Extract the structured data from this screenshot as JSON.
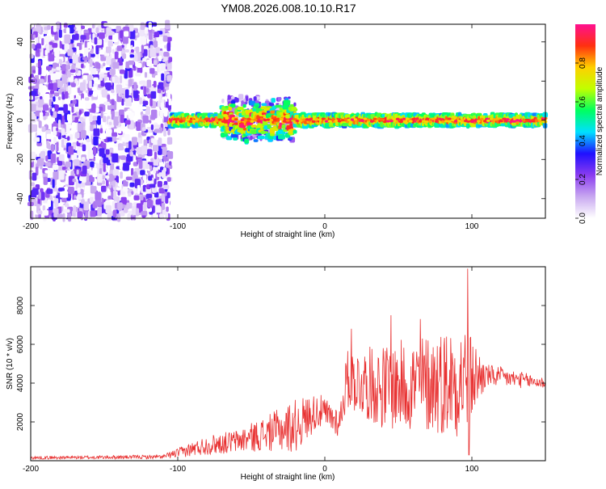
{
  "figure": {
    "title": "YM08.2026.008.10.10.R17"
  },
  "chart_data": [
    {
      "type": "heatmap",
      "title": "YM08.2026.008.10.10.R17",
      "xlabel": "Height of straight line (km)",
      "ylabel": "Frequency (Hz)",
      "xlim": [
        -200,
        150
      ],
      "ylim": [
        -50,
        49
      ],
      "x_ticks": [
        -200,
        -100,
        0,
        100
      ],
      "y_ticks": [
        -40,
        -20,
        0,
        20,
        40
      ],
      "grid": false,
      "colorbar": {
        "label": "Normalized spectral amplitude",
        "range": [
          0,
          1
        ],
        "ticks": [
          0.0,
          0.2,
          0.4,
          0.6,
          0.8
        ],
        "colors": [
          "#ffffff",
          "#c8a8f0",
          "#8a3cf0",
          "#2010ff",
          "#00e0ff",
          "#00ff60",
          "#c0ff00",
          "#ffd000",
          "#ff3010",
          "#ff1090"
        ]
      },
      "regions": [
        {
          "name": "broadband noise",
          "x_range": [
            -200,
            -105
          ],
          "freq_range": [
            -50,
            49
          ],
          "amplitude": [
            0.05,
            0.3
          ]
        },
        {
          "name": "signal band",
          "x_range": [
            -105,
            150
          ],
          "center_freq": 0,
          "half_width_hz": 3,
          "amplitude": [
            0.3,
            1.0
          ]
        },
        {
          "name": "spread",
          "x_range": [
            -70,
            -20
          ],
          "freq_range": [
            -10,
            12
          ]
        }
      ]
    },
    {
      "type": "line",
      "xlabel": "Height of straight line (km)",
      "ylabel": "SNR (10 * v/v)",
      "xlim": [
        -200,
        150
      ],
      "ylim": [
        0,
        10000
      ],
      "x_ticks": [
        -200,
        -100,
        0,
        100
      ],
      "y_ticks": [
        2000,
        4000,
        6000,
        8000
      ],
      "grid": false,
      "series": [
        {
          "color": "#e83030",
          "envelope": [
            {
              "x": -200,
              "mean": 150,
              "spread": 80
            },
            {
              "x": -110,
              "mean": 200,
              "spread": 100
            },
            {
              "x": -100,
              "mean": 400,
              "spread": 250
            },
            {
              "x": -80,
              "mean": 800,
              "spread": 500
            },
            {
              "x": -60,
              "mean": 1000,
              "spread": 600
            },
            {
              "x": -40,
              "mean": 1400,
              "spread": 900
            },
            {
              "x": -20,
              "mean": 1800,
              "spread": 1400
            },
            {
              "x": -5,
              "mean": 2600,
              "spread": 900
            },
            {
              "x": 10,
              "mean": 2000,
              "spread": 800
            },
            {
              "x": 15,
              "mean": 4200,
              "spread": 1500
            },
            {
              "x": 40,
              "mean": 3800,
              "spread": 2200
            },
            {
              "x": 70,
              "mean": 4000,
              "spread": 2600
            },
            {
              "x": 95,
              "mean": 4200,
              "spread": 3000
            },
            {
              "x": 110,
              "mean": 4400,
              "spread": 600
            },
            {
              "x": 150,
              "mean": 4000,
              "spread": 300
            }
          ],
          "peaks": [
            {
              "x": 97,
              "y": 9900
            },
            {
              "x": 45,
              "y": 7500
            },
            {
              "x": 65,
              "y": 7300
            },
            {
              "x": 18,
              "y": 6800
            },
            {
              "x": 98,
              "y": 300
            }
          ]
        }
      ]
    }
  ]
}
